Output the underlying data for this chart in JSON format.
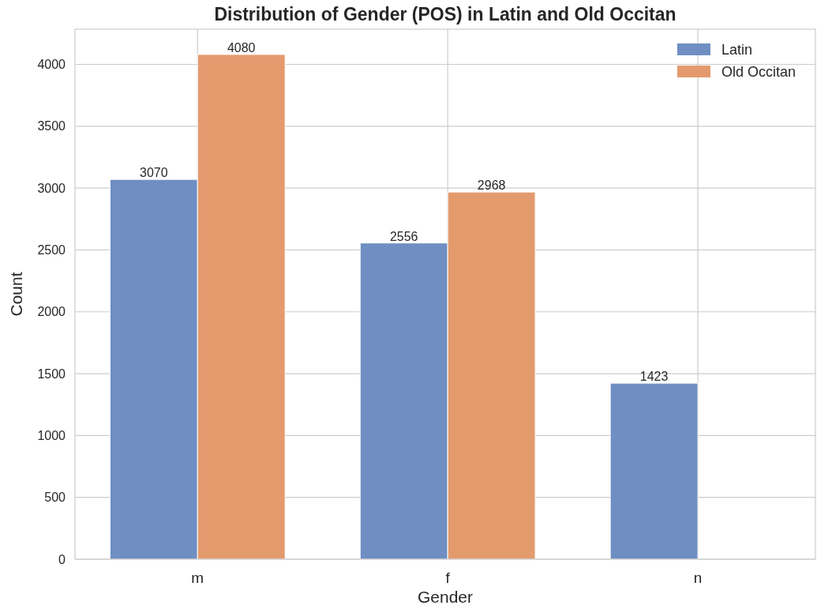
{
  "chart_data": {
    "type": "bar",
    "title": "Distribution of Gender (POS) in Latin and Old Occitan",
    "xlabel": "Gender",
    "ylabel": "Count",
    "categories": [
      "m",
      "f",
      "n"
    ],
    "series": [
      {
        "name": "Latin",
        "color": "#6f8fc2",
        "values": [
          3070,
          2556,
          1423
        ]
      },
      {
        "name": "Old Occitan",
        "color": "#e39b6e",
        "values": [
          4080,
          2968,
          null
        ]
      }
    ],
    "ylim": [
      0,
      4284
    ],
    "yticks": [
      0,
      500,
      1000,
      1500,
      2000,
      2500,
      3000,
      3500,
      4000
    ],
    "grid": true,
    "legend": "top right",
    "data_labels": true
  }
}
